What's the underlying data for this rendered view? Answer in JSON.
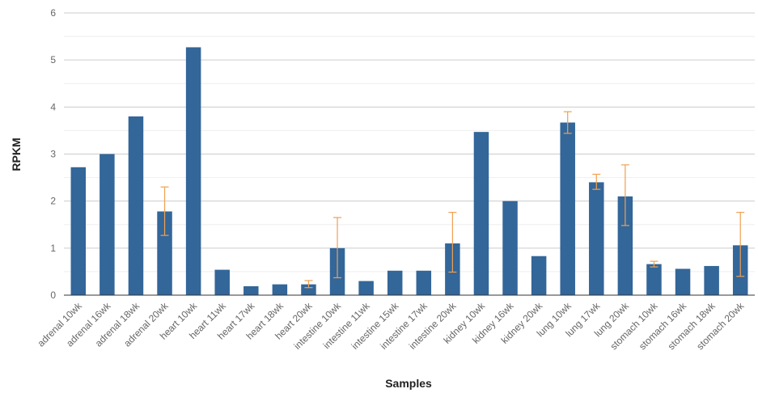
{
  "chart_data": {
    "type": "bar",
    "title": "",
    "xlabel": "Samples",
    "ylabel": "RPKM",
    "ylim": [
      0,
      6
    ],
    "yticks": [
      0,
      1,
      2,
      3,
      4,
      5,
      6
    ],
    "grid": true,
    "legend": "none",
    "categories": [
      "adrenal 10wk",
      "adrenal 16wk",
      "adrenal 18wk",
      "adrenal 20wk",
      "heart 10wk",
      "heart 11wk",
      "heart 17wk",
      "heart 18wk",
      "heart 20wk",
      "intestine 10wk",
      "intestine 11wk",
      "intestine 15wk",
      "intestine 17wk",
      "intestine 20wk",
      "kidney 10wk",
      "kidney 16wk",
      "kidney 20wk",
      "lung 10wk",
      "lung 17wk",
      "lung 20wk",
      "stomach 10wk",
      "stomach 16wk",
      "stomach 18wk",
      "stomach 20wk"
    ],
    "values": [
      2.72,
      3.0,
      3.8,
      1.78,
      5.27,
      0.54,
      0.19,
      0.23,
      0.23,
      1.0,
      0.3,
      0.52,
      0.52,
      1.1,
      3.47,
      2.0,
      0.83,
      3.67,
      2.4,
      2.1,
      0.66,
      0.56,
      0.62,
      1.06
    ],
    "error_bars": [
      null,
      null,
      null,
      [
        1.27,
        2.3
      ],
      null,
      null,
      null,
      null,
      [
        0.16,
        0.31
      ],
      [
        0.37,
        1.65
      ],
      null,
      null,
      null,
      [
        0.49,
        1.76
      ],
      null,
      null,
      null,
      [
        3.44,
        3.9
      ],
      [
        2.25,
        2.57
      ],
      [
        1.48,
        2.77
      ],
      [
        0.6,
        0.72
      ],
      null,
      null,
      [
        0.4,
        1.76
      ]
    ],
    "colors": {
      "bar": "#336699",
      "error_bar": "#f0a050",
      "grid": "#cccccc",
      "minor_grid": "#eeeeee",
      "axis": "#333333"
    }
  }
}
